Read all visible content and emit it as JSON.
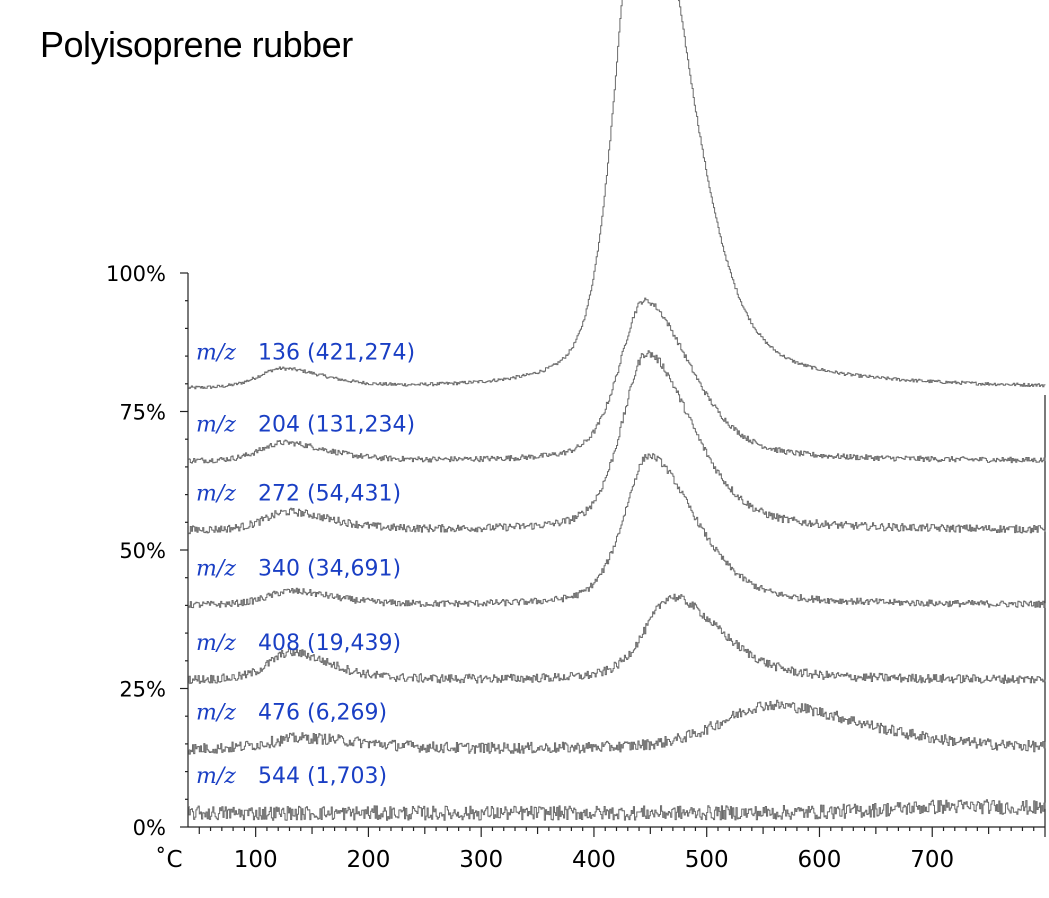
{
  "chart_data": {
    "type": "line",
    "title": "Polyisoprene rubber",
    "x_unit_label": "˚C",
    "xlim": [
      40,
      800
    ],
    "ylim": [
      0,
      100
    ],
    "x_ticks": [
      "100",
      "200",
      "300",
      "400",
      "500",
      "600",
      "700"
    ],
    "y_ticks": [
      "0%",
      "25%",
      "50%",
      "75%",
      "100%"
    ],
    "series": [
      {
        "mz_label": "m/z",
        "mz_value": "136",
        "count": "(421,274)",
        "baseline": 79,
        "peaks": [
          {
            "x": 122,
            "h": 3.5,
            "w": 28
          },
          {
            "x": 442,
            "h": 100,
            "w": 30
          }
        ],
        "noise": 0.3
      },
      {
        "mz_label": "m/z",
        "mz_value": "204",
        "count": "(131,234)",
        "baseline": 66,
        "peaks": [
          {
            "x": 124,
            "h": 3.3,
            "w": 28
          },
          {
            "x": 444,
            "h": 29,
            "w": 30
          }
        ],
        "noise": 0.5
      },
      {
        "mz_label": "m/z",
        "mz_value": "272",
        "count": "(54,431)",
        "baseline": 53.5,
        "peaks": [
          {
            "x": 128,
            "h": 3.3,
            "w": 28
          },
          {
            "x": 446,
            "h": 32,
            "w": 30
          }
        ],
        "noise": 0.7
      },
      {
        "mz_label": "m/z",
        "mz_value": "340",
        "count": "(34,691)",
        "baseline": 40,
        "peaks": [
          {
            "x": 130,
            "h": 2.5,
            "w": 28
          },
          {
            "x": 448,
            "h": 27,
            "w": 30
          }
        ],
        "noise": 0.6
      },
      {
        "mz_label": "m/z",
        "mz_value": "408",
        "count": "(19,439)",
        "baseline": 26.5,
        "peaks": [
          {
            "x": 130,
            "h": 5,
            "w": 26
          },
          {
            "x": 468,
            "h": 15,
            "w": 32
          }
        ],
        "noise": 0.8
      },
      {
        "mz_label": "m/z",
        "mz_value": "476",
        "count": "(6,269)",
        "baseline": 14,
        "peaks": [
          {
            "x": 140,
            "h": 2,
            "w": 40
          },
          {
            "x": 555,
            "h": 8,
            "w": 60
          }
        ],
        "noise": 1.0
      },
      {
        "mz_label": "m/z",
        "mz_value": "544",
        "count": "(1,703)",
        "baseline": 2.5,
        "peaks": [
          {
            "x": 720,
            "h": 1.2,
            "w": 80
          }
        ],
        "noise": 1.3
      }
    ]
  }
}
